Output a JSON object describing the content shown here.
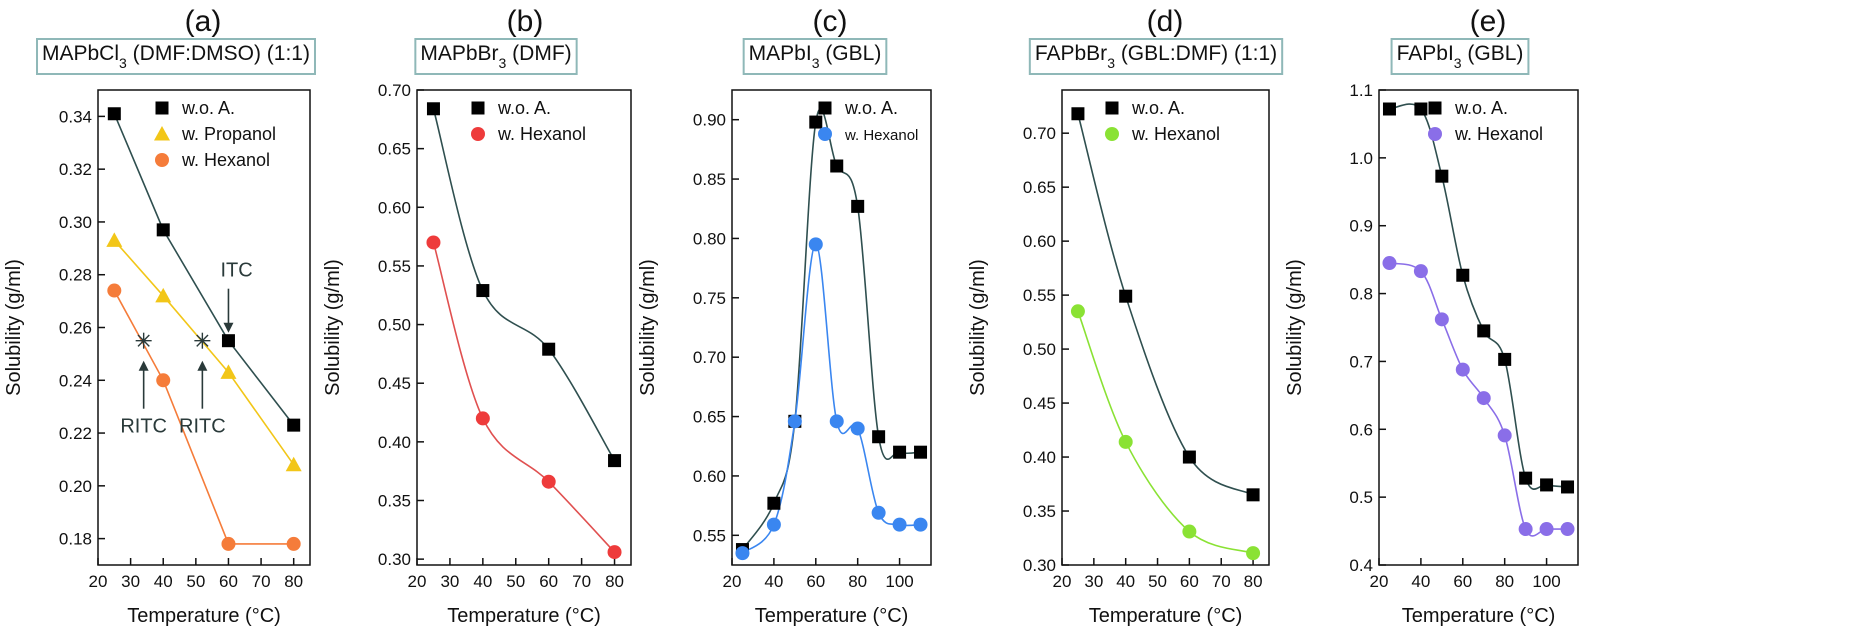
{
  "chart_data": [
    {
      "type": "line",
      "panel": "(a)",
      "title_parts": [
        {
          "t": "MAPbCl"
        },
        {
          "t": "3",
          "sub": true
        },
        {
          "t": " (DMF:DMSO) (1:1)"
        }
      ],
      "xlabel": "Temperature (°C)",
      "ylabel": "Solubility (g/ml)",
      "xlim": [
        20,
        85
      ],
      "ylim": [
        0.17,
        0.35
      ],
      "xticks": [
        20,
        30,
        40,
        50,
        60,
        70,
        80
      ],
      "yticks": [
        0.18,
        0.2,
        0.22,
        0.24,
        0.26,
        0.28,
        0.3,
        0.32,
        0.34
      ],
      "ytick_decimals": 2,
      "series": [
        {
          "name": "w.o. A.",
          "marker": "square",
          "color": "#000000",
          "line_color": "#2f4f4f",
          "x": [
            25,
            40,
            60,
            80
          ],
          "y": [
            0.341,
            0.297,
            0.255,
            0.223
          ],
          "interp": "linear"
        },
        {
          "name": "w. Propanol",
          "marker": "triangle",
          "color": "#f2c618",
          "line_color": "#f2c618",
          "x": [
            25,
            40,
            60,
            80
          ],
          "y": [
            0.293,
            0.272,
            0.243,
            0.208
          ],
          "interp": "linear"
        },
        {
          "name": "w. Hexanol",
          "marker": "circle",
          "color": "#f57c3a",
          "line_color": "#f57c3a",
          "x": [
            25,
            40,
            60,
            80
          ],
          "y": [
            0.274,
            0.24,
            0.178,
            0.178
          ],
          "interp": "linear"
        }
      ],
      "legend": {
        "position": "top-right"
      },
      "annotations": [
        {
          "label": "ITC",
          "type": "down-arrow",
          "x": 60,
          "y": 0.255
        },
        {
          "label": "RITC",
          "type": "star-up-arrow",
          "x": 34,
          "y": 0.255
        },
        {
          "label": "RITC",
          "type": "star-up-arrow",
          "x": 52,
          "y": 0.255
        }
      ]
    },
    {
      "type": "line",
      "panel": "(b)",
      "title_parts": [
        {
          "t": "MAPbBr"
        },
        {
          "t": "3",
          "sub": true
        },
        {
          "t": " (DMF)"
        }
      ],
      "xlabel": "Temperature (°C)",
      "ylabel": "Solubility (g/ml)",
      "xlim": [
        20,
        85
      ],
      "ylim": [
        0.295,
        0.7
      ],
      "xticks": [
        20,
        30,
        40,
        50,
        60,
        70,
        80
      ],
      "yticks": [
        0.3,
        0.35,
        0.4,
        0.45,
        0.5,
        0.55,
        0.6,
        0.65,
        0.7
      ],
      "ytick_decimals": 2,
      "series": [
        {
          "name": "w.o. A.",
          "marker": "square",
          "color": "#000000",
          "line_color": "#2f4f4f",
          "x": [
            25,
            40,
            60,
            80
          ],
          "y": [
            0.684,
            0.529,
            0.479,
            0.384
          ],
          "interp": "spline"
        },
        {
          "name": "w. Hexanol",
          "marker": "circle",
          "color": "#ee3b3b",
          "line_color": "#e05050",
          "x": [
            25,
            40,
            60,
            80
          ],
          "y": [
            0.57,
            0.42,
            0.366,
            0.306
          ],
          "interp": "spline"
        }
      ],
      "legend": {
        "position": "top-right"
      },
      "annotations": []
    },
    {
      "type": "line",
      "panel": "(c)",
      "title_parts": [
        {
          "t": "MAPbI"
        },
        {
          "t": "3",
          "sub": true
        },
        {
          "t": " (GBL)"
        }
      ],
      "xlabel": "Temperature (°C)",
      "ylabel": "Solubility (g/ml)",
      "xlim": [
        20,
        115
      ],
      "ylim": [
        0.525,
        0.925
      ],
      "xticks": [
        20,
        40,
        60,
        80,
        100
      ],
      "yticks": [
        0.55,
        0.6,
        0.65,
        0.7,
        0.75,
        0.8,
        0.85,
        0.9
      ],
      "ytick_decimals": 2,
      "series": [
        {
          "name": "w.o. A.",
          "marker": "square",
          "color": "#000000",
          "line_color": "#2f4f4f",
          "x": [
            25,
            40,
            50,
            60,
            70,
            80,
            90,
            100,
            110
          ],
          "y": [
            0.538,
            0.577,
            0.646,
            0.898,
            0.861,
            0.827,
            0.633,
            0.62,
            0.62
          ],
          "interp": "spline"
        },
        {
          "name": "w. Hexanol",
          "marker": "circle",
          "color": "#3a86f0",
          "line_color": "#3a86f0",
          "x": [
            25,
            40,
            50,
            60,
            70,
            80,
            90,
            100,
            110
          ],
          "y": [
            0.535,
            0.559,
            0.646,
            0.795,
            0.646,
            0.64,
            0.569,
            0.559,
            0.559
          ],
          "interp": "spline"
        }
      ],
      "legend": {
        "position": "top-right",
        "small_second": true
      },
      "annotations": []
    },
    {
      "type": "line",
      "panel": "(d)",
      "title_parts": [
        {
          "t": "FAPbBr"
        },
        {
          "t": "3",
          "sub": true
        },
        {
          "t": " (GBL:DMF) (1:1)"
        }
      ],
      "xlabel": "Temperature (°C)",
      "ylabel": "Solubility (g/ml)",
      "xlim": [
        20,
        85
      ],
      "ylim": [
        0.3,
        0.74
      ],
      "xticks": [
        20,
        30,
        40,
        50,
        60,
        70,
        80
      ],
      "yticks": [
        0.3,
        0.35,
        0.4,
        0.45,
        0.5,
        0.55,
        0.6,
        0.65,
        0.7
      ],
      "ytick_decimals": 2,
      "series": [
        {
          "name": "w.o. A.",
          "marker": "square",
          "color": "#000000",
          "line_color": "#2f4f4f",
          "x": [
            25,
            40,
            60,
            80
          ],
          "y": [
            0.718,
            0.549,
            0.4,
            0.365
          ],
          "interp": "spline"
        },
        {
          "name": "w. Hexanol",
          "marker": "circle",
          "color": "#8ae234",
          "line_color": "#8ae234",
          "x": [
            25,
            40,
            60,
            80
          ],
          "y": [
            0.535,
            0.414,
            0.331,
            0.311
          ],
          "interp": "spline"
        }
      ],
      "legend": {
        "position": "top-right"
      },
      "annotations": []
    },
    {
      "type": "line",
      "panel": "(e)",
      "title_parts": [
        {
          "t": "FAPbI"
        },
        {
          "t": "3",
          "sub": true
        },
        {
          "t": "  (GBL)"
        }
      ],
      "xlabel": "Temperature (°C)",
      "ylabel": "Solubility (g/ml)",
      "xlim": [
        20,
        115
      ],
      "ylim": [
        0.4,
        1.1
      ],
      "xticks": [
        20,
        40,
        60,
        80,
        100
      ],
      "yticks": [
        0.4,
        0.5,
        0.6,
        0.7,
        0.8,
        0.9,
        1.0,
        1.1
      ],
      "ytick_decimals": 1,
      "series": [
        {
          "name": "w.o. A.",
          "marker": "square",
          "color": "#000000",
          "line_color": "#2f4f4f",
          "x": [
            25,
            40,
            50,
            60,
            70,
            80,
            90,
            100,
            110
          ],
          "y": [
            1.072,
            1.072,
            0.973,
            0.827,
            0.745,
            0.703,
            0.528,
            0.518,
            0.515
          ],
          "interp": "spline"
        },
        {
          "name": "w. Hexanol",
          "marker": "circle",
          "color": "#8a6ee8",
          "line_color": "#8a6ee8",
          "x": [
            25,
            40,
            50,
            60,
            70,
            80,
            90,
            100,
            110
          ],
          "y": [
            0.845,
            0.833,
            0.762,
            0.688,
            0.646,
            0.591,
            0.453,
            0.453,
            0.453
          ],
          "interp": "spline"
        }
      ],
      "legend": {
        "position": "top-right"
      },
      "annotations": []
    }
  ]
}
